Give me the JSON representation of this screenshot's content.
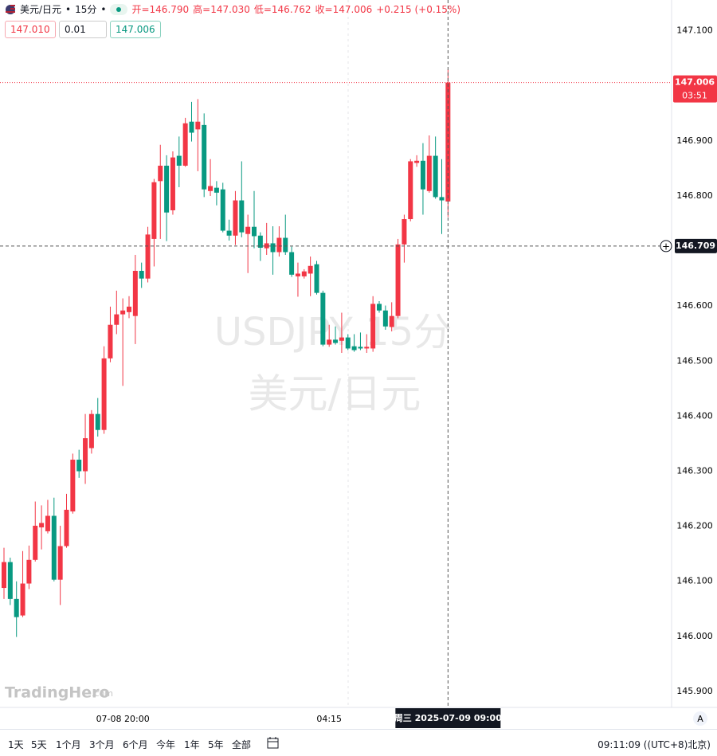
{
  "chart_data": {
    "type": "candlestick",
    "quote": {
      "symbol": "美元/日元",
      "interval": "15分",
      "open": "开=146.790",
      "high": "高=147.030",
      "low": "低=146.762",
      "close": "收=147.006",
      "change": "+0.215 (+0.15%)"
    },
    "order_panel": {
      "sell": "147.010",
      "quantity": "0.01",
      "buy": "147.006"
    },
    "watermark": {
      "symbol": "USDJPY 15分",
      "name": "美元/日元"
    },
    "logo": "TradingHero",
    "logo_suffix": ".com",
    "up_color": "#f23645",
    "down_color": "#089981",
    "categories": [
      null,
      null,
      null,
      null,
      null,
      null,
      null,
      null,
      null,
      null,
      null,
      null,
      null,
      null,
      null,
      null,
      null,
      null,
      null,
      "07-08 20:00",
      null,
      null,
      null,
      null,
      null,
      null,
      null,
      null,
      null,
      null,
      null,
      null,
      null,
      null,
      null,
      null,
      null,
      null,
      null,
      null,
      null,
      null,
      null,
      null,
      null,
      null,
      null,
      null,
      null,
      null,
      null,
      null,
      "04:15",
      null,
      null,
      null,
      null,
      null,
      null,
      null,
      null,
      null,
      null,
      null,
      null,
      null,
      null,
      null,
      null,
      null,
      null,
      null
    ],
    "open": [
      146.088,
      146.135,
      146.068,
      146.038,
      146.096,
      146.139,
      146.198,
      146.191,
      146.219,
      146.103,
      146.164,
      146.227,
      146.321,
      146.3,
      146.342,
      146.404,
      146.375,
      146.505,
      146.566,
      146.585,
      146.589,
      146.582,
      146.664,
      146.65,
      146.722,
      146.827,
      146.855,
      146.774,
      146.873,
      146.855,
      146.935,
      146.921,
      146.929,
      146.809,
      146.815,
      146.812,
      146.737,
      146.728,
      146.792,
      146.731,
      146.744,
      146.728,
      146.705,
      146.714,
      146.698,
      146.724,
      146.698,
      146.654,
      146.654,
      146.659,
      146.676,
      146.624,
      146.53,
      146.539,
      146.537,
      146.543,
      146.527,
      146.526,
      146.523,
      146.523,
      146.604,
      146.592,
      146.562,
      146.582,
      146.712,
      146.758,
      146.86,
      146.864,
      146.809,
      146.873,
      146.798,
      146.79
    ],
    "high": [
      146.161,
      146.143,
      146.1,
      146.155,
      146.165,
      146.245,
      146.238,
      146.248,
      146.252,
      146.201,
      146.259,
      146.332,
      146.339,
      146.404,
      146.411,
      146.433,
      146.527,
      146.599,
      146.628,
      146.614,
      146.618,
      146.693,
      146.679,
      146.744,
      146.831,
      146.893,
      146.874,
      146.881,
      146.908,
      146.942,
      146.971,
      146.976,
      146.95,
      146.867,
      146.827,
      146.824,
      146.757,
      146.809,
      146.863,
      146.766,
      146.809,
      146.734,
      146.751,
      146.745,
      146.745,
      146.766,
      146.708,
      146.679,
      146.667,
      146.69,
      146.682,
      146.628,
      146.566,
      146.563,
      146.588,
      146.549,
      146.549,
      146.552,
      146.549,
      146.618,
      146.609,
      146.601,
      146.607,
      146.722,
      146.766,
      146.867,
      146.874,
      146.896,
      146.91,
      146.908,
      146.867,
      147.03
    ],
    "low": [
      146.068,
      146.057,
      145.999,
      146.035,
      146.086,
      146.136,
      146.158,
      146.187,
      146.1,
      146.057,
      146.161,
      146.223,
      146.288,
      146.277,
      146.332,
      146.363,
      146.368,
      146.498,
      146.549,
      146.455,
      146.578,
      146.531,
      146.633,
      146.643,
      146.672,
      146.722,
      146.718,
      146.766,
      146.816,
      146.853,
      146.899,
      146.845,
      146.798,
      146.8,
      146.783,
      146.734,
      146.719,
      146.711,
      146.725,
      146.66,
      146.705,
      146.682,
      146.693,
      146.657,
      146.69,
      146.693,
      146.653,
      146.617,
      146.65,
      146.618,
      146.621,
      146.527,
      146.526,
      146.53,
      146.515,
      146.52,
      146.517,
      146.52,
      146.515,
      146.517,
      146.588,
      146.557,
      146.554,
      146.578,
      146.679,
      146.754,
      146.853,
      146.766,
      146.806,
      146.795,
      146.731,
      146.762
    ],
    "close": [
      146.135,
      146.068,
      146.035,
      146.096,
      146.139,
      146.201,
      146.206,
      146.219,
      146.103,
      146.164,
      146.23,
      146.321,
      146.3,
      146.36,
      146.404,
      146.375,
      146.505,
      146.566,
      146.585,
      146.592,
      146.599,
      146.664,
      146.65,
      146.73,
      146.825,
      146.855,
      146.77,
      146.87,
      146.855,
      146.932,
      146.915,
      146.935,
      146.812,
      146.818,
      146.806,
      146.737,
      146.728,
      146.792,
      146.734,
      146.744,
      146.727,
      146.706,
      146.714,
      146.698,
      146.724,
      146.698,
      146.657,
      146.659,
      146.663,
      146.673,
      146.624,
      146.53,
      146.539,
      146.533,
      146.543,
      146.523,
      146.52,
      146.523,
      146.526,
      146.604,
      146.592,
      146.563,
      146.582,
      146.712,
      146.758,
      146.863,
      146.864,
      146.812,
      146.873,
      146.798,
      146.792,
      147.006
    ],
    "ylim": [
      145.871,
      147.156
    ],
    "yticks": [
      {
        "value": 147.1,
        "label": "147.100"
      },
      {
        "value": 146.9,
        "label": "146.900"
      },
      {
        "value": 146.8,
        "label": "146.800"
      },
      {
        "value": 146.6,
        "label": "146.600"
      },
      {
        "value": 146.5,
        "label": "146.500"
      },
      {
        "value": 146.4,
        "label": "146.400"
      },
      {
        "value": 146.3,
        "label": "146.300"
      },
      {
        "value": 146.2,
        "label": "146.200"
      },
      {
        "value": 146.1,
        "label": "146.100"
      },
      {
        "value": 146,
        "label": "146.000"
      },
      {
        "value": 145.9,
        "label": "145.900"
      }
    ],
    "last_price": 147.006,
    "countdown": "03:51",
    "crosshair_price": 146.709,
    "crosshair_time": "周三 2025-07-09 09:00",
    "scale_mode": "A"
  },
  "toolbar": {
    "periods": [
      "1天",
      "5天",
      "1个月",
      "3个月",
      "6个月",
      "今年",
      "1年",
      "5年",
      "全部"
    ],
    "clock": "09:11:09 ((UTC+8)北京)"
  }
}
